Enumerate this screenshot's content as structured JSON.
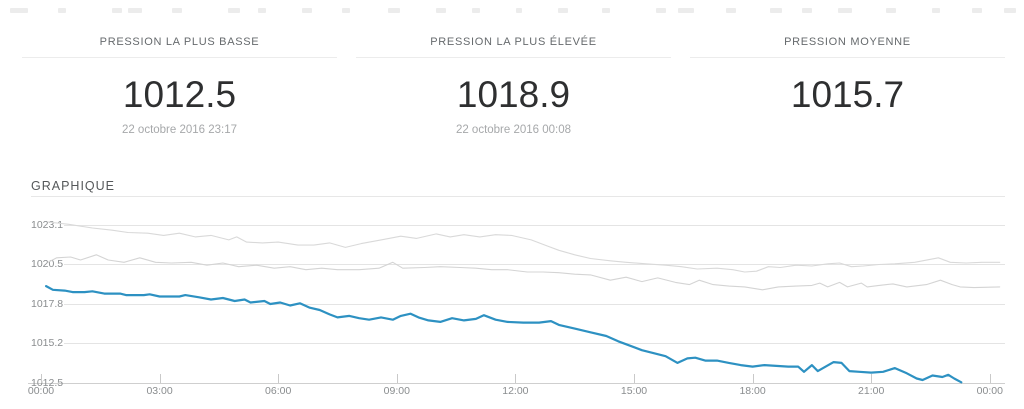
{
  "stats": {
    "panels": [
      {
        "label": "PRESSION LA PLUS BASSE",
        "value": "1012.5",
        "date": "22 octobre 2016 23:17"
      },
      {
        "label": "PRESSION LA PLUS ÉLEVÉE",
        "value": "1018.9",
        "date": "22 octobre 2016 00:08"
      },
      {
        "label": "PRESSION MOYENNE",
        "value": "1015.7",
        "date": ""
      }
    ]
  },
  "chart_data": {
    "type": "line",
    "title": "GRAPHIQUE",
    "xlabel": "",
    "ylabel": "",
    "x_axis": {
      "tick_labels": [
        "00:00",
        "03:00",
        "06:00",
        "09:00",
        "12:00",
        "15:00",
        "18:00",
        "21:00",
        "00:00"
      ],
      "hours_range": [
        0,
        24
      ]
    },
    "y_axis": {
      "tick_labels": [
        "1023.1",
        "1020.5",
        "1017.8",
        "1015.2",
        "1012.5"
      ],
      "range": [
        1012.5,
        1023.1
      ]
    },
    "grid": true,
    "legend": "none",
    "series": [
      {
        "name": "pression-mesuree",
        "color": "#2d91c2",
        "stroke_width": 2.2,
        "points": [
          [
            0.13,
            1019.0
          ],
          [
            0.3,
            1018.75
          ],
          [
            0.6,
            1018.7
          ],
          [
            0.8,
            1018.6
          ],
          [
            1.1,
            1018.6
          ],
          [
            1.3,
            1018.65
          ],
          [
            1.6,
            1018.5
          ],
          [
            2.0,
            1018.5
          ],
          [
            2.15,
            1018.4
          ],
          [
            2.6,
            1018.4
          ],
          [
            2.75,
            1018.45
          ],
          [
            3.0,
            1018.3
          ],
          [
            3.5,
            1018.3
          ],
          [
            3.65,
            1018.4
          ],
          [
            4.0,
            1018.25
          ],
          [
            4.3,
            1018.1
          ],
          [
            4.6,
            1018.2
          ],
          [
            4.9,
            1018.0
          ],
          [
            5.15,
            1018.1
          ],
          [
            5.3,
            1017.9
          ],
          [
            5.65,
            1018.0
          ],
          [
            5.8,
            1017.8
          ],
          [
            6.05,
            1017.9
          ],
          [
            6.3,
            1017.7
          ],
          [
            6.55,
            1017.85
          ],
          [
            6.8,
            1017.55
          ],
          [
            7.05,
            1017.4
          ],
          [
            7.3,
            1017.1
          ],
          [
            7.5,
            1016.9
          ],
          [
            7.8,
            1017.0
          ],
          [
            8.05,
            1016.85
          ],
          [
            8.3,
            1016.75
          ],
          [
            8.6,
            1016.9
          ],
          [
            8.9,
            1016.75
          ],
          [
            9.1,
            1017.0
          ],
          [
            9.35,
            1017.15
          ],
          [
            9.55,
            1016.9
          ],
          [
            9.8,
            1016.7
          ],
          [
            10.1,
            1016.6
          ],
          [
            10.4,
            1016.85
          ],
          [
            10.7,
            1016.7
          ],
          [
            11.0,
            1016.8
          ],
          [
            11.2,
            1017.05
          ],
          [
            11.5,
            1016.75
          ],
          [
            11.8,
            1016.6
          ],
          [
            12.2,
            1016.55
          ],
          [
            12.6,
            1016.55
          ],
          [
            12.9,
            1016.65
          ],
          [
            13.1,
            1016.4
          ],
          [
            13.5,
            1016.15
          ],
          [
            13.9,
            1015.9
          ],
          [
            14.3,
            1015.65
          ],
          [
            14.6,
            1015.3
          ],
          [
            14.9,
            1015.0
          ],
          [
            15.2,
            1014.7
          ],
          [
            15.5,
            1014.5
          ],
          [
            15.8,
            1014.3
          ],
          [
            16.1,
            1013.85
          ],
          [
            16.35,
            1014.15
          ],
          [
            16.55,
            1014.2
          ],
          [
            16.8,
            1014.0
          ],
          [
            17.1,
            1014.0
          ],
          [
            17.4,
            1013.85
          ],
          [
            17.7,
            1013.7
          ],
          [
            18.0,
            1013.6
          ],
          [
            18.3,
            1013.7
          ],
          [
            18.6,
            1013.65
          ],
          [
            18.9,
            1013.6
          ],
          [
            19.15,
            1013.6
          ],
          [
            19.3,
            1013.25
          ],
          [
            19.5,
            1013.7
          ],
          [
            19.65,
            1013.3
          ],
          [
            19.85,
            1013.6
          ],
          [
            20.05,
            1013.9
          ],
          [
            20.25,
            1013.85
          ],
          [
            20.45,
            1013.3
          ],
          [
            20.7,
            1013.25
          ],
          [
            21.0,
            1013.2
          ],
          [
            21.3,
            1013.25
          ],
          [
            21.6,
            1013.5
          ],
          [
            21.9,
            1013.15
          ],
          [
            22.15,
            1012.8
          ],
          [
            22.3,
            1012.7
          ],
          [
            22.55,
            1013.0
          ],
          [
            22.8,
            1012.9
          ],
          [
            22.95,
            1013.05
          ],
          [
            23.1,
            1012.8
          ],
          [
            23.28,
            1012.55
          ]
        ]
      },
      {
        "name": "ligne-grise-superieure",
        "color": "#d9d9d9",
        "stroke_width": 1.1,
        "points": [
          [
            0.18,
            1023.3
          ],
          [
            0.7,
            1023.15
          ],
          [
            1.3,
            1022.9
          ],
          [
            1.8,
            1022.75
          ],
          [
            2.2,
            1022.6
          ],
          [
            2.7,
            1022.55
          ],
          [
            3.1,
            1022.4
          ],
          [
            3.5,
            1022.55
          ],
          [
            3.9,
            1022.3
          ],
          [
            4.3,
            1022.4
          ],
          [
            4.75,
            1022.1
          ],
          [
            4.95,
            1022.3
          ],
          [
            5.2,
            1021.95
          ],
          [
            5.6,
            1021.9
          ],
          [
            6.0,
            1021.95
          ],
          [
            6.5,
            1021.75
          ],
          [
            6.9,
            1021.75
          ],
          [
            7.3,
            1021.9
          ],
          [
            7.7,
            1021.6
          ],
          [
            8.1,
            1021.85
          ],
          [
            8.6,
            1022.1
          ],
          [
            9.1,
            1022.35
          ],
          [
            9.5,
            1022.2
          ],
          [
            10.0,
            1022.5
          ],
          [
            10.35,
            1022.3
          ],
          [
            10.7,
            1022.45
          ],
          [
            11.1,
            1022.3
          ],
          [
            11.5,
            1022.45
          ],
          [
            11.9,
            1022.4
          ],
          [
            12.4,
            1022.1
          ],
          [
            12.8,
            1021.7
          ],
          [
            13.1,
            1021.4
          ],
          [
            13.5,
            1021.1
          ],
          [
            13.9,
            1020.85
          ],
          [
            14.4,
            1020.7
          ],
          [
            14.8,
            1020.6
          ],
          [
            15.3,
            1020.5
          ],
          [
            15.8,
            1020.4
          ],
          [
            16.2,
            1020.3
          ],
          [
            16.6,
            1020.15
          ],
          [
            17.1,
            1020.2
          ],
          [
            17.5,
            1020.1
          ],
          [
            17.8,
            1019.95
          ],
          [
            18.1,
            1020.0
          ],
          [
            18.4,
            1020.3
          ],
          [
            18.7,
            1020.25
          ],
          [
            19.1,
            1020.4
          ],
          [
            19.5,
            1020.35
          ],
          [
            19.9,
            1020.5
          ],
          [
            20.2,
            1020.55
          ],
          [
            20.5,
            1020.3
          ],
          [
            20.8,
            1020.35
          ],
          [
            21.2,
            1020.45
          ],
          [
            21.6,
            1020.5
          ],
          [
            22.1,
            1020.6
          ],
          [
            22.7,
            1020.9
          ],
          [
            23.0,
            1020.6
          ],
          [
            23.4,
            1020.55
          ],
          [
            23.8,
            1020.6
          ],
          [
            24.25,
            1020.6
          ]
        ]
      },
      {
        "name": "ligne-grise-inferieure",
        "color": "#d4d4d4",
        "stroke_width": 1.1,
        "points": [
          [
            0.18,
            1020.6
          ],
          [
            0.4,
            1020.9
          ],
          [
            0.75,
            1020.95
          ],
          [
            1.0,
            1020.75
          ],
          [
            1.4,
            1021.1
          ],
          [
            1.7,
            1020.75
          ],
          [
            2.1,
            1020.6
          ],
          [
            2.5,
            1020.9
          ],
          [
            2.9,
            1020.6
          ],
          [
            3.3,
            1020.55
          ],
          [
            3.8,
            1020.6
          ],
          [
            4.2,
            1020.4
          ],
          [
            4.6,
            1020.55
          ],
          [
            5.0,
            1020.3
          ],
          [
            5.45,
            1020.4
          ],
          [
            5.9,
            1020.2
          ],
          [
            6.3,
            1020.3
          ],
          [
            6.7,
            1020.1
          ],
          [
            7.1,
            1020.2
          ],
          [
            7.5,
            1020.1
          ],
          [
            8.05,
            1020.1
          ],
          [
            8.55,
            1020.2
          ],
          [
            8.9,
            1020.6
          ],
          [
            9.15,
            1020.2
          ],
          [
            9.7,
            1020.25
          ],
          [
            10.1,
            1020.3
          ],
          [
            10.6,
            1020.25
          ],
          [
            11.0,
            1020.2
          ],
          [
            11.4,
            1020.1
          ],
          [
            11.8,
            1020.1
          ],
          [
            12.3,
            1019.95
          ],
          [
            12.7,
            1019.95
          ],
          [
            13.1,
            1019.9
          ],
          [
            13.5,
            1019.8
          ],
          [
            13.9,
            1019.75
          ],
          [
            14.4,
            1019.4
          ],
          [
            14.8,
            1019.6
          ],
          [
            15.2,
            1019.3
          ],
          [
            15.6,
            1019.55
          ],
          [
            16.05,
            1019.25
          ],
          [
            16.4,
            1019.1
          ],
          [
            16.65,
            1019.4
          ],
          [
            17.0,
            1019.1
          ],
          [
            17.4,
            1019.0
          ],
          [
            17.8,
            1018.95
          ],
          [
            18.25,
            1018.75
          ],
          [
            18.65,
            1018.95
          ],
          [
            19.1,
            1019.0
          ],
          [
            19.5,
            1019.05
          ],
          [
            19.7,
            1019.2
          ],
          [
            19.9,
            1018.95
          ],
          [
            20.2,
            1019.25
          ],
          [
            20.4,
            1018.95
          ],
          [
            20.75,
            1019.2
          ],
          [
            20.9,
            1018.95
          ],
          [
            21.2,
            1019.05
          ],
          [
            21.55,
            1019.15
          ],
          [
            21.9,
            1018.95
          ],
          [
            22.4,
            1019.1
          ],
          [
            22.75,
            1019.4
          ],
          [
            23.05,
            1019.1
          ],
          [
            23.25,
            1018.95
          ],
          [
            23.6,
            1018.9
          ],
          [
            24.25,
            1018.95
          ]
        ]
      }
    ]
  }
}
